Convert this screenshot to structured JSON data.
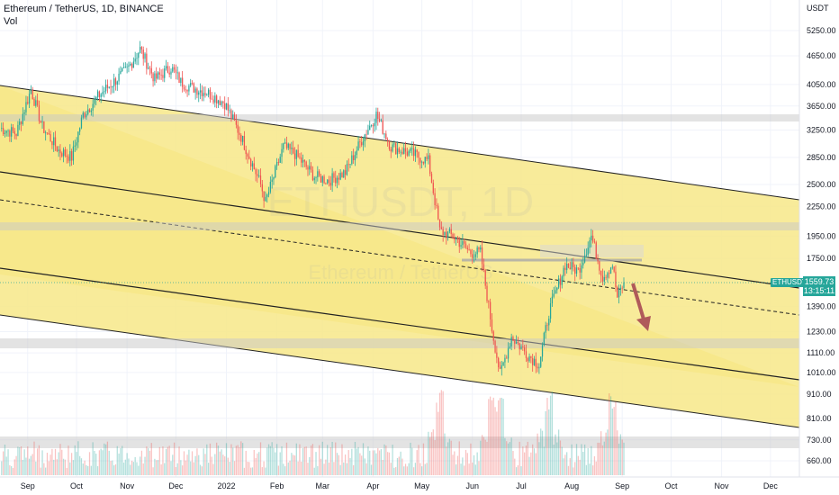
{
  "header": {
    "title": "Ethereum / TetherUS, 1D, BINANCE",
    "vol_label": "Vol"
  },
  "watermark": {
    "symbol": "ETHUSDT, 1D",
    "name": "Ethereum / TetherUS"
  },
  "price_badge": {
    "symbol": "ETHUSDT",
    "price": "1559.73",
    "countdown": "13:15:11"
  },
  "chart_data": {
    "type": "candlestick",
    "title": "Ethereum / TetherUS, 1D, BINANCE",
    "yaxis_unit": "USDT",
    "yscale": "log",
    "ylim": [
      600,
      6200
    ],
    "y_ticks": [
      "5250.00",
      "4650.00",
      "4050.00",
      "3650.00",
      "3250.00",
      "2850.00",
      "2500.00",
      "2250.00",
      "1950.00",
      "1750.00",
      "1390.00",
      "1230.00",
      "1110.00",
      "1010.00",
      "910.00",
      "810.00",
      "730.00",
      "660.00"
    ],
    "x_ticks": [
      "Sep",
      "Oct",
      "Nov",
      "Dec",
      "2022",
      "Feb",
      "Mar",
      "Apr",
      "May",
      "Jun",
      "Jul",
      "Aug",
      "Sep",
      "Oct",
      "Nov",
      "Dec"
    ],
    "last_price": 1559.73,
    "price_path": [
      [
        "2021-08-15",
        3280
      ],
      [
        "2021-08-25",
        3200
      ],
      [
        "2021-09-03",
        3950
      ],
      [
        "2021-09-10",
        3300
      ],
      [
        "2021-09-20",
        2950
      ],
      [
        "2021-09-28",
        2850
      ],
      [
        "2021-10-05",
        3500
      ],
      [
        "2021-10-15",
        3850
      ],
      [
        "2021-10-22",
        4050
      ],
      [
        "2021-11-01",
        4350
      ],
      [
        "2021-11-09",
        4800
      ],
      [
        "2021-11-18",
        4150
      ],
      [
        "2021-11-28",
        4400
      ],
      [
        "2021-12-04",
        4100
      ],
      [
        "2021-12-10",
        4000
      ],
      [
        "2021-12-20",
        3900
      ],
      [
        "2021-12-31",
        3700
      ],
      [
        "2022-01-10",
        3150
      ],
      [
        "2022-01-22",
        2500
      ],
      [
        "2022-01-25",
        2300
      ],
      [
        "2022-02-05",
        3000
      ],
      [
        "2022-02-12",
        2900
      ],
      [
        "2022-02-24",
        2600
      ],
      [
        "2022-03-05",
        2550
      ],
      [
        "2022-03-15",
        2650
      ],
      [
        "2022-03-25",
        3100
      ],
      [
        "2022-04-03",
        3500
      ],
      [
        "2022-04-12",
        3000
      ],
      [
        "2022-04-25",
        2900
      ],
      [
        "2022-05-05",
        2800
      ],
      [
        "2022-05-12",
        2000
      ],
      [
        "2022-05-20",
        1950
      ],
      [
        "2022-05-31",
        1800
      ],
      [
        "2022-06-06",
        1800
      ],
      [
        "2022-06-13",
        1250
      ],
      [
        "2022-06-18",
        1000
      ],
      [
        "2022-06-25",
        1200
      ],
      [
        "2022-07-05",
        1100
      ],
      [
        "2022-07-12",
        1050
      ],
      [
        "2022-07-18",
        1350
      ],
      [
        "2022-07-28",
        1700
      ],
      [
        "2022-08-05",
        1650
      ],
      [
        "2022-08-13",
        1950
      ],
      [
        "2022-08-20",
        1600
      ],
      [
        "2022-08-26",
        1700
      ],
      [
        "2022-08-29",
        1450
      ],
      [
        "2022-09-02",
        1560
      ]
    ],
    "volume_spikes": [
      "2022-05-12",
      "2022-06-13",
      "2022-06-18",
      "2022-07-18",
      "2022-08-26"
    ],
    "annotations": [
      {
        "kind": "channel",
        "label": "upper descending channel",
        "color": "#f7e788"
      },
      {
        "kind": "channel",
        "label": "lower descending channel",
        "color": "#f7e788"
      },
      {
        "kind": "horizontal_zone",
        "price_low": 3450,
        "price_high": 3550
      },
      {
        "kind": "horizontal_zone",
        "price_low": 1960,
        "price_high": 2060
      },
      {
        "kind": "horizontal_zone",
        "price_low": 1170,
        "price_high": 1210
      },
      {
        "kind": "horizontal_zone",
        "price_low": 720,
        "price_high": 760
      },
      {
        "kind": "horizontal_line",
        "price": 1750
      },
      {
        "kind": "midline_dashed"
      },
      {
        "kind": "arrow",
        "direction": "down",
        "color": "#b05a5a"
      }
    ],
    "colors": {
      "up": "#26a69a",
      "down": "#ef5350",
      "channel_fill": "#f7e788",
      "zone": "#d8d8d8"
    }
  }
}
